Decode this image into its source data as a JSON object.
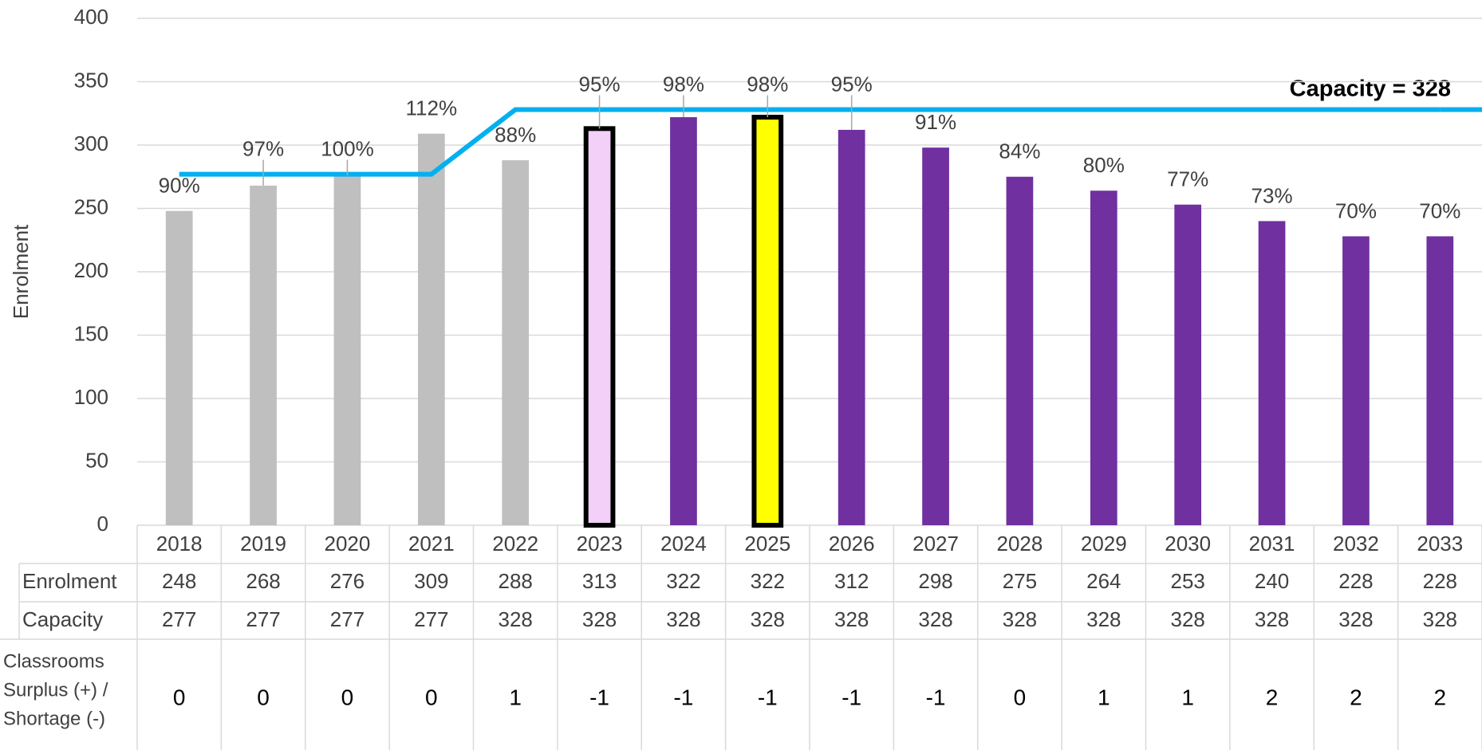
{
  "chart_data": {
    "type": "bar",
    "y_label": "Enrolment",
    "categories": [
      "2018",
      "2019",
      "2020",
      "2021",
      "2022",
      "2023",
      "2024",
      "2025",
      "2026",
      "2027",
      "2028",
      "2029",
      "2030",
      "2031",
      "2032",
      "2033"
    ],
    "series": [
      {
        "name": "Enrolment",
        "type": "bar",
        "values": [
          248,
          268,
          276,
          309,
          288,
          313,
          322,
          322,
          312,
          298,
          275,
          264,
          253,
          240,
          228,
          228
        ],
        "colors": [
          "#bfbfbf",
          "#bfbfbf",
          "#bfbfbf",
          "#bfbfbf",
          "#bfbfbf",
          "#f2d0f7",
          "#7030a0",
          "#ffff00",
          "#7030a0",
          "#7030a0",
          "#7030a0",
          "#7030a0",
          "#7030a0",
          "#7030a0",
          "#7030a0",
          "#7030a0"
        ],
        "edgecolors": [
          null,
          null,
          null,
          null,
          null,
          "#000000",
          null,
          "#000000",
          null,
          null,
          null,
          null,
          null,
          null,
          null,
          null
        ]
      },
      {
        "name": "Capacity",
        "type": "line",
        "color": "#00b0f0",
        "values": [
          277,
          277,
          277,
          277,
          328,
          328,
          328,
          328,
          328,
          328,
          328,
          328,
          328,
          328,
          328,
          328
        ]
      }
    ],
    "percent_labels": [
      "90%",
      "97%",
      "100%",
      "112%",
      "88%",
      "95%",
      "98%",
      "98%",
      "95%",
      "91%",
      "84%",
      "80%",
      "77%",
      "73%",
      "70%",
      "70%"
    ],
    "annotation": "Capacity = 328",
    "classrooms": {
      "label_lines": [
        "Classrooms",
        "Surplus (+) /",
        "Shortage (-)"
      ],
      "values": [
        0,
        0,
        0,
        0,
        1,
        -1,
        -1,
        -1,
        -1,
        -1,
        0,
        1,
        1,
        2,
        2,
        2
      ]
    },
    "ylim": [
      0,
      400
    ],
    "yticks": [
      0,
      50,
      100,
      150,
      200,
      250,
      300,
      350,
      400
    ],
    "grid": true
  }
}
